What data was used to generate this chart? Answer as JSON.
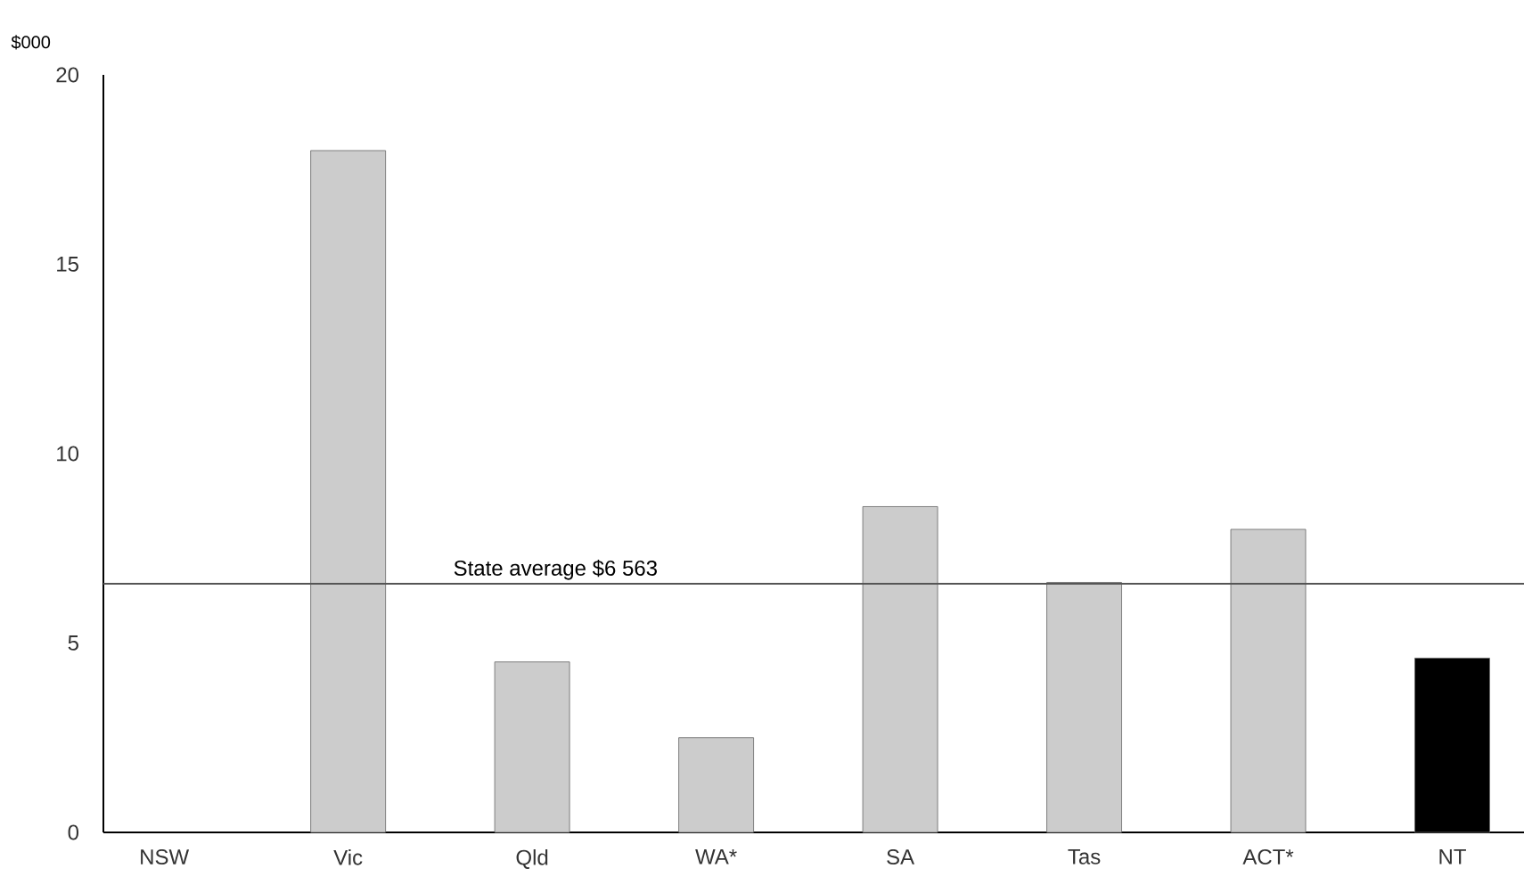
{
  "chart_data": {
    "type": "bar",
    "ylabel": "$000",
    "categories": [
      "NSW",
      "Vic",
      "Qld",
      "WA*",
      "SA",
      "Tas",
      "ACT*",
      "NT"
    ],
    "values": [
      null,
      18.0,
      4.5,
      2.5,
      8.6,
      6.6,
      8.0,
      4.6
    ],
    "colors": [
      "#cccccc",
      "#cccccc",
      "#cccccc",
      "#cccccc",
      "#cccccc",
      "#cccccc",
      "#cccccc",
      "#000000"
    ],
    "ylim": [
      0,
      20
    ],
    "yticks": [
      0,
      5,
      10,
      15,
      20
    ],
    "grid": false,
    "ref_lines": [
      {
        "axis": "y",
        "value": 6.563,
        "label": "State average  $6 563",
        "color": "#555555",
        "line_style": "solid"
      }
    ]
  }
}
